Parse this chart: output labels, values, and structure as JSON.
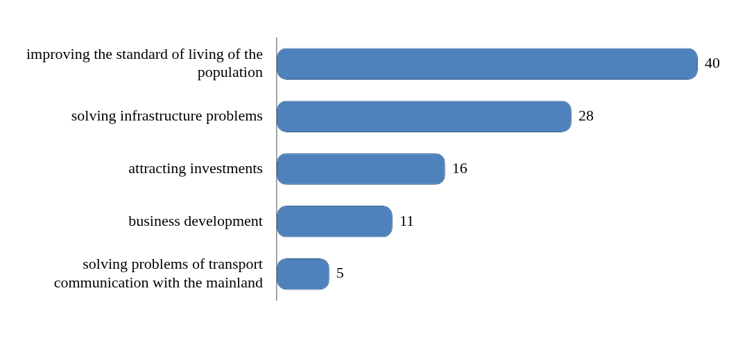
{
  "chart_data": {
    "type": "bar",
    "orientation": "horizontal",
    "categories": [
      "improving the standard of living of the population",
      "solving infrastructure problems",
      "attracting investments",
      "business development",
      "solving problems of transport communication with the mainland"
    ],
    "values": [
      40,
      28,
      16,
      11,
      5
    ],
    "color": "#4f81bd",
    "data_labels": true,
    "legend": false
  }
}
